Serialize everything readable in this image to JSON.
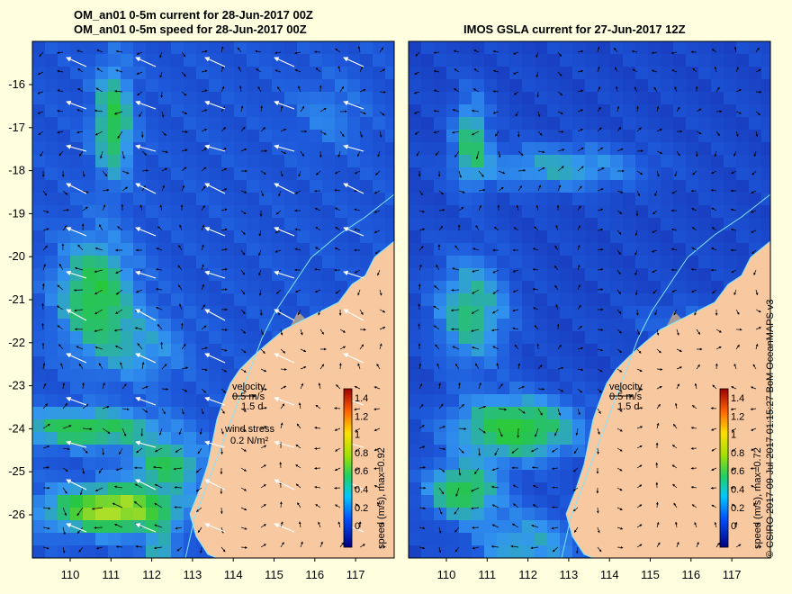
{
  "left_panel": {
    "title_line1": "OM_an01 0-5m current for 28-Jun-2017 00Z",
    "title_line2": "OM_an01 0-5m speed for 28-Jun-2017 00Z",
    "colorbar_label": "speed (m/s), max=0.92",
    "legend": {
      "velocity_label": "velocity",
      "velocity_value": "0.5 m/s",
      "velocity_days": "1.5 d",
      "wind_label": "wind stress",
      "wind_value": "0.2 N/m²"
    }
  },
  "right_panel": {
    "title": "IMOS GSLA current for 27-Jun-2017 12Z",
    "colorbar_label": "speed (m/s), max=0.72",
    "legend": {
      "velocity_label": "velocity",
      "velocity_value": "0.5 m/s",
      "velocity_days": "1.5 d"
    }
  },
  "axes": {
    "x_ticks": [
      "110",
      "111",
      "112",
      "113",
      "114",
      "115",
      "116",
      "117"
    ],
    "y_ticks": [
      "-16",
      "-17",
      "-18",
      "-19",
      "-20",
      "-21",
      "-22",
      "-23",
      "-24",
      "-25",
      "-26"
    ]
  },
  "colorbar_ticks": [
    "1.4",
    "1.2",
    "1",
    "0.8",
    "0.6",
    "0.4",
    "0.2",
    "0"
  ],
  "credit": "© CSIRO 2017  09-Jul-2017 01:15:27 BoM OceanMAPS v3",
  "colors": {
    "background": "#ffffe0",
    "ocean_slow": "#1e3cc8",
    "ocean_mid": "#3c8cf0",
    "ocean_fast": "#28c850",
    "jet_peak": "#f0f028",
    "land": "#f8c8a0",
    "islands_shelf": "#b4a08c",
    "coastline": "#7fe7ff"
  }
}
